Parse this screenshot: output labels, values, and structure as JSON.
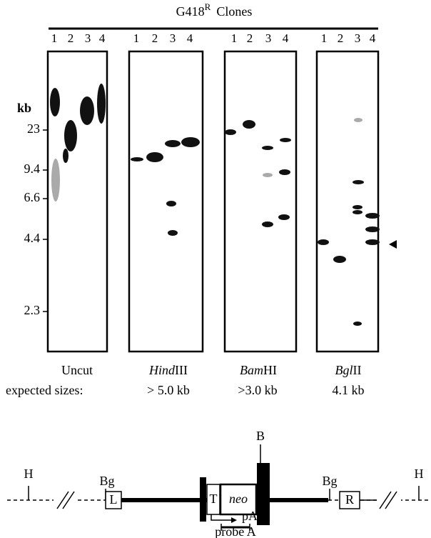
{
  "title": {
    "main": "G418",
    "sup": "R",
    "rest": "Clones"
  },
  "markers": {
    "unit": "kb",
    "sizes": [
      "23",
      "9.4",
      "6.6",
      "4.4",
      "2.3"
    ]
  },
  "expected_label": "expected sizes:",
  "panels": [
    {
      "lanes": [
        "1",
        "2",
        "3",
        "4"
      ],
      "label": "Uncut"
    },
    {
      "lanes": [
        "1",
        "2",
        "3",
        "4"
      ],
      "label_italic": "Hind",
      "label_plain": "III",
      "expected": "> 5.0 kb"
    },
    {
      "lanes": [
        "1",
        "2",
        "3",
        "4"
      ],
      "label_italic": "Bam",
      "label_plain": "HI",
      "expected": ">3.0 kb"
    },
    {
      "lanes": [
        "1",
        "2",
        "3",
        "4"
      ],
      "label_italic": "Bgl",
      "label_plain": "II",
      "expected": "4.1 kb"
    }
  ],
  "diagram": {
    "h_left": "H",
    "bg_left": "Bg",
    "box_left": "L",
    "box_t": "T",
    "box_neo": "neo",
    "b": "B",
    "pa": "pA",
    "bg_right": "Bg",
    "box_right": "R",
    "h_right": "H",
    "probe": "probe A"
  }
}
